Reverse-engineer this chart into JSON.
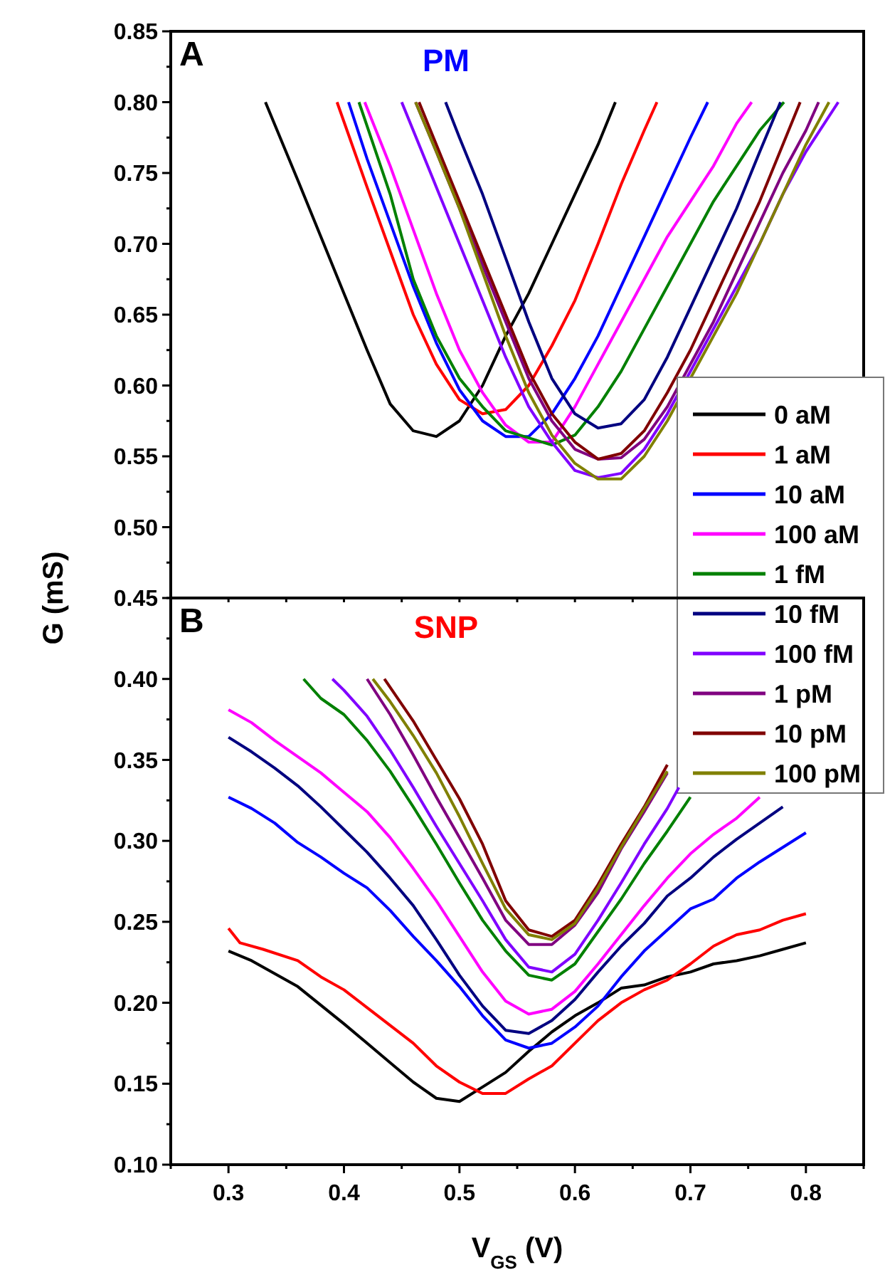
{
  "chart_data": [
    {
      "type": "line",
      "title": "PM",
      "annotations": [
        "A"
      ],
      "ylabel": "G (mS)",
      "legend": "bottom right",
      "tick_labels": "y",
      "grid": false,
      "marker": "none",
      "line_style": "solid",
      "xlim": [
        0.25,
        0.85
      ],
      "ylim": [
        0.45,
        0.85
      ],
      "xticks": [
        {
          "value": 0.25,
          "label": null
        },
        {
          "value": 0.3,
          "label": null
        },
        {
          "value": 0.35,
          "label": null
        },
        {
          "value": 0.4,
          "label": null
        },
        {
          "value": 0.45,
          "label": null
        },
        {
          "value": 0.5,
          "label": null
        },
        {
          "value": 0.55,
          "label": null
        },
        {
          "value": 0.6,
          "label": null
        },
        {
          "value": 0.65,
          "label": null
        },
        {
          "value": 0.7,
          "label": null
        },
        {
          "value": 0.75,
          "label": null
        },
        {
          "value": 0.8,
          "label": null
        },
        {
          "value": 0.85,
          "label": null
        }
      ],
      "yticks": [
        {
          "value": 0.45,
          "label": null
        },
        {
          "value": 0.475,
          "label": null
        },
        {
          "value": 0.5,
          "label": "0.50"
        },
        {
          "value": 0.525,
          "label": null
        },
        {
          "value": 0.55,
          "label": "0.55"
        },
        {
          "value": 0.575,
          "label": null
        },
        {
          "value": 0.6,
          "label": "0.60"
        },
        {
          "value": 0.625,
          "label": null
        },
        {
          "value": 0.65,
          "label": "0.65"
        },
        {
          "value": 0.675,
          "label": null
        },
        {
          "value": 0.7,
          "label": "0.70"
        },
        {
          "value": 0.725,
          "label": null
        },
        {
          "value": 0.75,
          "label": "0.75"
        },
        {
          "value": 0.775,
          "label": null
        },
        {
          "value": 0.8,
          "label": "0.80"
        },
        {
          "value": 0.825,
          "label": null
        },
        {
          "value": 0.85,
          "label": "0.85"
        }
      ],
      "series": [
        {
          "name": "0 aM",
          "color": "#000000",
          "x": [
            0.332,
            0.36,
            0.38,
            0.4,
            0.42,
            0.44,
            0.46,
            0.48,
            0.5,
            0.52,
            0.54,
            0.56,
            0.58,
            0.6,
            0.62,
            0.635
          ],
          "values": [
            0.8,
            0.745,
            0.705,
            0.665,
            0.625,
            0.587,
            0.568,
            0.564,
            0.575,
            0.6,
            0.635,
            0.665,
            0.7,
            0.735,
            0.77,
            0.8
          ]
        },
        {
          "name": "1 aM",
          "color": "#ff0000",
          "x": [
            0.394,
            0.42,
            0.44,
            0.46,
            0.48,
            0.5,
            0.52,
            0.54,
            0.56,
            0.58,
            0.6,
            0.62,
            0.64,
            0.66,
            0.671
          ],
          "values": [
            0.8,
            0.74,
            0.695,
            0.65,
            0.615,
            0.59,
            0.58,
            0.583,
            0.6,
            0.628,
            0.66,
            0.7,
            0.742,
            0.78,
            0.8
          ]
        },
        {
          "name": "10 aM",
          "color": "#0000ff",
          "x": [
            0.404,
            0.42,
            0.44,
            0.46,
            0.48,
            0.5,
            0.52,
            0.54,
            0.56,
            0.58,
            0.6,
            0.62,
            0.64,
            0.66,
            0.68,
            0.7,
            0.715
          ],
          "values": [
            0.8,
            0.76,
            0.715,
            0.67,
            0.63,
            0.597,
            0.575,
            0.564,
            0.564,
            0.58,
            0.605,
            0.635,
            0.67,
            0.705,
            0.74,
            0.775,
            0.8
          ]
        },
        {
          "name": "100 aM",
          "color": "#ff00ff",
          "x": [
            0.418,
            0.44,
            0.46,
            0.48,
            0.5,
            0.52,
            0.54,
            0.56,
            0.58,
            0.6,
            0.62,
            0.64,
            0.66,
            0.68,
            0.7,
            0.72,
            0.74,
            0.753
          ],
          "values": [
            0.8,
            0.755,
            0.71,
            0.665,
            0.625,
            0.595,
            0.572,
            0.56,
            0.56,
            0.585,
            0.615,
            0.645,
            0.675,
            0.705,
            0.73,
            0.755,
            0.785,
            0.8
          ]
        },
        {
          "name": "1 fM",
          "color": "#008000",
          "x": [
            0.413,
            0.44,
            0.46,
            0.48,
            0.5,
            0.52,
            0.54,
            0.56,
            0.58,
            0.6,
            0.62,
            0.64,
            0.66,
            0.68,
            0.7,
            0.72,
            0.74,
            0.76,
            0.781
          ],
          "values": [
            0.8,
            0.735,
            0.675,
            0.635,
            0.605,
            0.585,
            0.568,
            0.563,
            0.558,
            0.565,
            0.585,
            0.61,
            0.64,
            0.67,
            0.7,
            0.73,
            0.755,
            0.78,
            0.8
          ]
        },
        {
          "name": "10 fM",
          "color": "#000080",
          "x": [
            0.488,
            0.5,
            0.52,
            0.54,
            0.56,
            0.58,
            0.6,
            0.62,
            0.64,
            0.66,
            0.68,
            0.7,
            0.72,
            0.74,
            0.76,
            0.778
          ],
          "values": [
            0.8,
            0.775,
            0.735,
            0.69,
            0.645,
            0.605,
            0.58,
            0.57,
            0.573,
            0.59,
            0.62,
            0.655,
            0.69,
            0.725,
            0.765,
            0.8
          ]
        },
        {
          "name": "100 fM",
          "color": "#8000ff",
          "x": [
            0.45,
            0.48,
            0.5,
            0.52,
            0.54,
            0.56,
            0.58,
            0.6,
            0.62,
            0.64,
            0.66,
            0.68,
            0.7,
            0.72,
            0.74,
            0.76,
            0.78,
            0.8,
            0.828
          ],
          "values": [
            0.8,
            0.74,
            0.7,
            0.66,
            0.62,
            0.585,
            0.56,
            0.54,
            0.535,
            0.538,
            0.555,
            0.58,
            0.61,
            0.64,
            0.67,
            0.7,
            0.735,
            0.765,
            0.8
          ]
        },
        {
          "name": "1 pM",
          "color": "#800080",
          "x": [
            0.462,
            0.48,
            0.5,
            0.52,
            0.54,
            0.56,
            0.58,
            0.6,
            0.62,
            0.64,
            0.66,
            0.68,
            0.7,
            0.72,
            0.74,
            0.76,
            0.78,
            0.8,
            0.811
          ],
          "values": [
            0.8,
            0.765,
            0.725,
            0.685,
            0.645,
            0.605,
            0.575,
            0.555,
            0.548,
            0.549,
            0.562,
            0.585,
            0.615,
            0.645,
            0.68,
            0.715,
            0.75,
            0.78,
            0.8
          ]
        },
        {
          "name": "10 pM",
          "color": "#800000",
          "x": [
            0.465,
            0.48,
            0.5,
            0.52,
            0.54,
            0.56,
            0.58,
            0.6,
            0.62,
            0.64,
            0.66,
            0.68,
            0.7,
            0.72,
            0.74,
            0.76,
            0.78,
            0.795
          ],
          "values": [
            0.8,
            0.77,
            0.73,
            0.69,
            0.65,
            0.61,
            0.58,
            0.56,
            0.548,
            0.552,
            0.568,
            0.595,
            0.625,
            0.66,
            0.695,
            0.73,
            0.77,
            0.8
          ]
        },
        {
          "name": "100 pM",
          "color": "#808000",
          "x": [
            0.462,
            0.48,
            0.5,
            0.52,
            0.54,
            0.56,
            0.58,
            0.6,
            0.62,
            0.64,
            0.66,
            0.68,
            0.7,
            0.72,
            0.74,
            0.76,
            0.78,
            0.8,
            0.82
          ],
          "values": [
            0.8,
            0.765,
            0.725,
            0.68,
            0.635,
            0.595,
            0.565,
            0.545,
            0.534,
            0.534,
            0.55,
            0.575,
            0.605,
            0.635,
            0.665,
            0.7,
            0.735,
            0.77,
            0.8
          ]
        }
      ]
    },
    {
      "type": "line",
      "title": "SNP",
      "annotations": [
        "B"
      ],
      "xlabel": "V$_{GS}$ (V)",
      "grid": false,
      "marker": "none",
      "line_style": "solid",
      "xlim": [
        0.25,
        0.85
      ],
      "ylim": [
        0.1,
        0.45
      ],
      "xticks": [
        {
          "value": 0.25,
          "label": null
        },
        {
          "value": 0.3,
          "label": "0.3"
        },
        {
          "value": 0.35,
          "label": null
        },
        {
          "value": 0.4,
          "label": "0.4"
        },
        {
          "value": 0.45,
          "label": null
        },
        {
          "value": 0.5,
          "label": "0.5"
        },
        {
          "value": 0.55,
          "label": null
        },
        {
          "value": 0.6,
          "label": "0.6"
        },
        {
          "value": 0.65,
          "label": null
        },
        {
          "value": 0.7,
          "label": "0.7"
        },
        {
          "value": 0.75,
          "label": null
        },
        {
          "value": 0.8,
          "label": "0.8"
        },
        {
          "value": 0.85,
          "label": null
        }
      ],
      "yticks": [
        {
          "value": 0.1,
          "label": "0.10"
        },
        {
          "value": 0.125,
          "label": null
        },
        {
          "value": 0.15,
          "label": "0.15"
        },
        {
          "value": 0.175,
          "label": null
        },
        {
          "value": 0.2,
          "label": "0.20"
        },
        {
          "value": 0.225,
          "label": null
        },
        {
          "value": 0.25,
          "label": "0.25"
        },
        {
          "value": 0.275,
          "label": null
        },
        {
          "value": 0.3,
          "label": "0.30"
        },
        {
          "value": 0.325,
          "label": null
        },
        {
          "value": 0.35,
          "label": "0.35"
        },
        {
          "value": 0.375,
          "label": null
        },
        {
          "value": 0.4,
          "label": "0.40"
        },
        {
          "value": 0.425,
          "label": null
        },
        {
          "value": 0.45,
          "label": "0.45"
        }
      ],
      "series": [
        {
          "color": "#000000",
          "x": [
            0.3,
            0.32,
            0.36,
            0.4,
            0.44,
            0.46,
            0.48,
            0.5,
            0.52,
            0.54,
            0.56,
            0.58,
            0.6,
            0.62,
            0.64,
            0.66,
            0.68,
            0.7,
            0.72,
            0.74,
            0.76,
            0.78,
            0.8
          ],
          "values": [
            0.232,
            0.226,
            0.21,
            0.187,
            0.163,
            0.151,
            0.141,
            0.139,
            0.148,
            0.157,
            0.17,
            0.182,
            0.192,
            0.2,
            0.209,
            0.211,
            0.216,
            0.219,
            0.224,
            0.226,
            0.229,
            0.233,
            0.237
          ]
        },
        {
          "color": "#ff0000",
          "x": [
            0.3,
            0.31,
            0.33,
            0.36,
            0.38,
            0.4,
            0.42,
            0.44,
            0.46,
            0.48,
            0.5,
            0.52,
            0.54,
            0.56,
            0.58,
            0.6,
            0.62,
            0.64,
            0.66,
            0.68,
            0.7,
            0.72,
            0.74,
            0.76,
            0.78,
            0.8
          ],
          "values": [
            0.246,
            0.237,
            0.233,
            0.226,
            0.216,
            0.208,
            0.197,
            0.186,
            0.175,
            0.161,
            0.151,
            0.144,
            0.144,
            0.153,
            0.161,
            0.175,
            0.189,
            0.2,
            0.208,
            0.214,
            0.224,
            0.235,
            0.242,
            0.245,
            0.251,
            0.255
          ]
        },
        {
          "color": "#0000ff",
          "x": [
            0.3,
            0.32,
            0.34,
            0.36,
            0.38,
            0.4,
            0.42,
            0.44,
            0.46,
            0.48,
            0.5,
            0.52,
            0.54,
            0.56,
            0.58,
            0.6,
            0.62,
            0.64,
            0.66,
            0.68,
            0.7,
            0.72,
            0.74,
            0.76,
            0.78,
            0.8
          ],
          "values": [
            0.327,
            0.32,
            0.311,
            0.299,
            0.29,
            0.28,
            0.271,
            0.257,
            0.241,
            0.226,
            0.21,
            0.192,
            0.177,
            0.172,
            0.175,
            0.185,
            0.198,
            0.216,
            0.232,
            0.245,
            0.258,
            0.264,
            0.277,
            0.287,
            0.296,
            0.305
          ]
        },
        {
          "color": "#ff00ff",
          "x": [
            0.3,
            0.32,
            0.34,
            0.36,
            0.38,
            0.4,
            0.42,
            0.44,
            0.46,
            0.48,
            0.5,
            0.52,
            0.54,
            0.56,
            0.58,
            0.6,
            0.62,
            0.64,
            0.66,
            0.68,
            0.7,
            0.72,
            0.74,
            0.76
          ],
          "values": [
            0.381,
            0.373,
            0.362,
            0.352,
            0.342,
            0.33,
            0.318,
            0.302,
            0.283,
            0.263,
            0.241,
            0.219,
            0.201,
            0.193,
            0.196,
            0.207,
            0.224,
            0.242,
            0.26,
            0.277,
            0.292,
            0.304,
            0.314,
            0.327
          ]
        },
        {
          "color": "#008000",
          "x": [
            0.365,
            0.38,
            0.4,
            0.42,
            0.44,
            0.46,
            0.48,
            0.5,
            0.52,
            0.54,
            0.56,
            0.58,
            0.6,
            0.62,
            0.64,
            0.66,
            0.68,
            0.7
          ],
          "values": [
            0.4,
            0.388,
            0.378,
            0.362,
            0.343,
            0.321,
            0.298,
            0.274,
            0.251,
            0.232,
            0.217,
            0.214,
            0.224,
            0.244,
            0.264,
            0.286,
            0.306,
            0.327
          ]
        },
        {
          "color": "#000080",
          "x": [
            0.3,
            0.32,
            0.34,
            0.36,
            0.38,
            0.4,
            0.42,
            0.44,
            0.46,
            0.48,
            0.5,
            0.52,
            0.54,
            0.56,
            0.58,
            0.6,
            0.62,
            0.64,
            0.66,
            0.68,
            0.7,
            0.72,
            0.74,
            0.76,
            0.78
          ],
          "values": [
            0.364,
            0.355,
            0.345,
            0.334,
            0.321,
            0.307,
            0.293,
            0.277,
            0.26,
            0.239,
            0.217,
            0.198,
            0.183,
            0.181,
            0.189,
            0.202,
            0.219,
            0.235,
            0.249,
            0.266,
            0.277,
            0.29,
            0.301,
            0.311,
            0.321
          ]
        },
        {
          "color": "#8000ff",
          "x": [
            0.39,
            0.4,
            0.42,
            0.44,
            0.46,
            0.48,
            0.5,
            0.52,
            0.54,
            0.56,
            0.58,
            0.6,
            0.62,
            0.64,
            0.66,
            0.68,
            0.69
          ],
          "values": [
            0.4,
            0.393,
            0.377,
            0.356,
            0.333,
            0.309,
            0.286,
            0.263,
            0.239,
            0.222,
            0.219,
            0.23,
            0.251,
            0.274,
            0.298,
            0.32,
            0.333
          ]
        },
        {
          "color": "#800080",
          "x": [
            0.42,
            0.44,
            0.46,
            0.48,
            0.5,
            0.52,
            0.54,
            0.56,
            0.58,
            0.6,
            0.62,
            0.64,
            0.66,
            0.68
          ],
          "values": [
            0.4,
            0.378,
            0.353,
            0.327,
            0.302,
            0.277,
            0.251,
            0.236,
            0.236,
            0.248,
            0.268,
            0.295,
            0.318,
            0.342
          ]
        },
        {
          "color": "#800000",
          "x": [
            0.435,
            0.46,
            0.48,
            0.5,
            0.52,
            0.54,
            0.56,
            0.58,
            0.6,
            0.62,
            0.64,
            0.66,
            0.68
          ],
          "values": [
            0.4,
            0.374,
            0.35,
            0.326,
            0.298,
            0.263,
            0.245,
            0.241,
            0.251,
            0.273,
            0.298,
            0.321,
            0.347
          ]
        },
        {
          "color": "#808000",
          "x": [
            0.425,
            0.44,
            0.46,
            0.48,
            0.5,
            0.52,
            0.54,
            0.56,
            0.58,
            0.6,
            0.62,
            0.64,
            0.66,
            0.68
          ],
          "values": [
            0.4,
            0.386,
            0.365,
            0.342,
            0.315,
            0.286,
            0.258,
            0.242,
            0.239,
            0.249,
            0.271,
            0.296,
            0.32,
            0.343
          ]
        }
      ]
    }
  ]
}
